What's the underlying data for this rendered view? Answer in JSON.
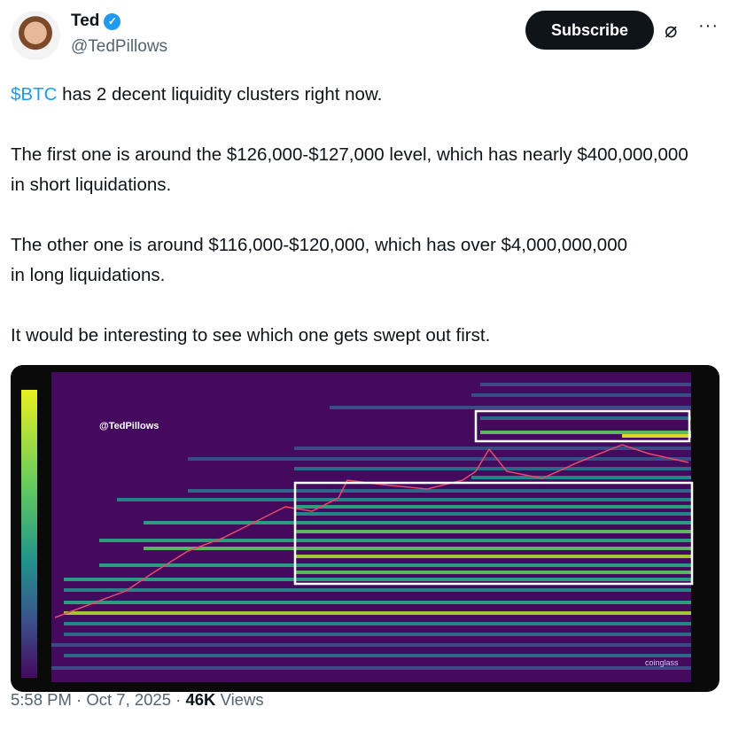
{
  "author": {
    "name": "Ted",
    "handle": "@TedPillows",
    "verified": true,
    "verified_color": "#1d9bf0"
  },
  "actions": {
    "subscribe_label": "Subscribe",
    "grok_icon": "grok-icon",
    "more_icon": "more-icon"
  },
  "tweet": {
    "cashtag": "$BTC",
    "line1_rest": " has 2 decent liquidity clusters right now.",
    "para2": "The first one is around the $126,000-$127,000 level, which has nearly $400,000,000 in short liquidations.",
    "para3": "The other one is around $116,000-$120,000, which has over $4,000,000,000 in long liquidations.",
    "para4": "It would be interesting to see which one gets swept out first."
  },
  "media": {
    "watermark": "@TedPillows",
    "brand": "coinglass",
    "colors": {
      "background": "#440a5e",
      "high": "#e8f020",
      "mid": "#21a585",
      "low": "#3b528b",
      "box": "#ffffff"
    }
  },
  "footer": {
    "time": "5:58 PM",
    "date": "Oct 7, 2025",
    "views_count": "46K",
    "views_label": "Views"
  }
}
